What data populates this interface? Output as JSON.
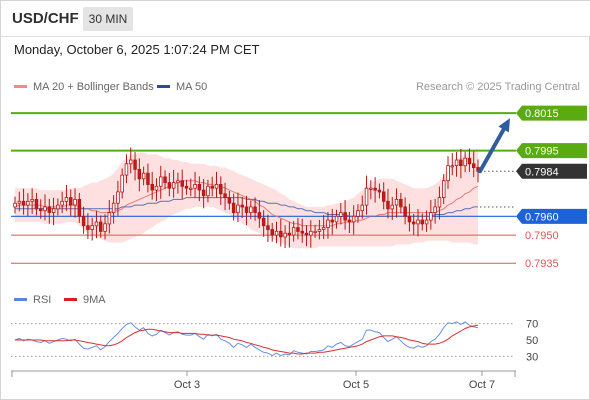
{
  "header": {
    "symbol": "USD/CHF",
    "timeframe": "30 MIN"
  },
  "timestamp": "Monday, October 6, 2025 1:07:24 PM CET",
  "legend": {
    "bb_label": "MA 20 + Bollinger Bands",
    "ma50_label": "MA 50",
    "credit": "Research © 2025 Trading Central"
  },
  "rsi_legend": {
    "rsi_label": "RSI",
    "ma_label": "9MA"
  },
  "colors": {
    "green_level": "#5aaa12",
    "current_price": "#333333",
    "support_blue": "#1e62d8",
    "red_level": "#e05555",
    "bollinger_fill": "#ffd5d5",
    "ma20": "#e87878",
    "ma50": "#5a6fb0",
    "bull_candle": "#ffffff",
    "bear_candle": "#c21b1b",
    "candle_outline": "#b01818",
    "arrow": "#2f5d9e",
    "rsi": "#6b8fe0",
    "rsi_ma": "#d83030"
  },
  "chart_data": [
    {
      "type": "candlestick",
      "title": "USD/CHF 30 MIN",
      "x_ticks": [
        "Oct 3",
        "Oct 5",
        "Oct 7"
      ],
      "ylim": [
        0.7925,
        0.8022
      ],
      "levels": [
        {
          "value": "0.8015",
          "style": "green-box"
        },
        {
          "value": "0.7995",
          "style": "green-box"
        },
        {
          "value": "0.7984",
          "style": "current-price"
        },
        {
          "value": "0.7960",
          "style": "blue-box"
        },
        {
          "value": "0.7950",
          "style": "red-text"
        },
        {
          "value": "0.7935",
          "style": "red-text"
        }
      ],
      "closes": [
        0.7967,
        0.7968,
        0.7966,
        0.7968,
        0.7969,
        0.7964,
        0.7963,
        0.7965,
        0.7962,
        0.7964,
        0.7966,
        0.7968,
        0.797,
        0.7966,
        0.7969,
        0.796,
        0.7955,
        0.7953,
        0.7955,
        0.7957,
        0.7952,
        0.7956,
        0.7962,
        0.7967,
        0.7973,
        0.7982,
        0.7988,
        0.799,
        0.7985,
        0.798,
        0.7983,
        0.7977,
        0.7974,
        0.7976,
        0.7981,
        0.7978,
        0.7975,
        0.7978,
        0.7979,
        0.7976,
        0.7975,
        0.7975,
        0.7977,
        0.7974,
        0.7971,
        0.7976,
        0.7975,
        0.7977,
        0.7972,
        0.797,
        0.7967,
        0.7962,
        0.7966,
        0.7965,
        0.7962,
        0.7965,
        0.7962,
        0.7959,
        0.7955,
        0.7953,
        0.795,
        0.7952,
        0.7949,
        0.7951,
        0.795,
        0.7954,
        0.7952,
        0.7951,
        0.795,
        0.7952,
        0.7952,
        0.7953,
        0.7954,
        0.7958,
        0.7957,
        0.796,
        0.7962,
        0.7958,
        0.7957,
        0.796,
        0.7963,
        0.7966,
        0.7975,
        0.7975,
        0.7974,
        0.7973,
        0.7968,
        0.7964,
        0.7966,
        0.7969,
        0.7965,
        0.796,
        0.7957,
        0.7956,
        0.7958,
        0.7956,
        0.7958,
        0.7962,
        0.7965,
        0.797,
        0.7979,
        0.7987,
        0.7987,
        0.799,
        0.7987,
        0.7991,
        0.7988,
        0.7986,
        0.7984
      ],
      "ma20": [
        0.7965,
        0.7966,
        0.7966,
        0.7966,
        0.7966,
        0.7966,
        0.7966,
        0.7965,
        0.7965,
        0.7965,
        0.7965,
        0.7965,
        0.7966,
        0.7966,
        0.7966,
        0.7965,
        0.7964,
        0.7964,
        0.7963,
        0.7963,
        0.7962,
        0.7962,
        0.7962,
        0.7963,
        0.7963,
        0.7964,
        0.7966,
        0.7967,
        0.7968,
        0.7969,
        0.797,
        0.7971,
        0.7972,
        0.7973,
        0.7974,
        0.7975,
        0.7976,
        0.7977,
        0.7978,
        0.7979,
        0.7979,
        0.7979,
        0.7979,
        0.7978,
        0.7978,
        0.7977,
        0.7977,
        0.7976,
        0.7976,
        0.7975,
        0.7974,
        0.7973,
        0.7972,
        0.7971,
        0.797,
        0.7969,
        0.7968,
        0.7966,
        0.7965,
        0.7963,
        0.7961,
        0.796,
        0.7959,
        0.7958,
        0.7957,
        0.7956,
        0.7956,
        0.7955,
        0.7955,
        0.7955,
        0.7955,
        0.7955,
        0.7955,
        0.7955,
        0.7955,
        0.7956,
        0.7956,
        0.7957,
        0.7957,
        0.7957,
        0.7958,
        0.7958,
        0.7959,
        0.796,
        0.796,
        0.7961,
        0.7961,
        0.7962,
        0.7962,
        0.7962,
        0.7962,
        0.7962,
        0.7962,
        0.7962,
        0.7962,
        0.7962,
        0.7962,
        0.7962,
        0.7962,
        0.7963,
        0.7964,
        0.7966,
        0.7967,
        0.7969,
        0.797,
        0.7972,
        0.7973,
        0.7975,
        0.7976
      ],
      "ma50": [
        0.7964,
        0.7964,
        0.7964,
        0.7964,
        0.7964,
        0.7964,
        0.7964,
        0.7964,
        0.7964,
        0.7964,
        0.7964,
        0.7964,
        0.7964,
        0.7964,
        0.7964,
        0.7964,
        0.7964,
        0.7964,
        0.7964,
        0.7964,
        0.7964,
        0.7964,
        0.7964,
        0.7964,
        0.7964,
        0.7965,
        0.7965,
        0.7965,
        0.7966,
        0.7966,
        0.7966,
        0.7967,
        0.7967,
        0.7967,
        0.7968,
        0.7968,
        0.7968,
        0.7969,
        0.7969,
        0.7969,
        0.797,
        0.797,
        0.797,
        0.797,
        0.797,
        0.797,
        0.797,
        0.797,
        0.797,
        0.797,
        0.797,
        0.797,
        0.797,
        0.797,
        0.7969,
        0.7969,
        0.7969,
        0.7968,
        0.7968,
        0.7967,
        0.7967,
        0.7967,
        0.7966,
        0.7966,
        0.7965,
        0.7965,
        0.7964,
        0.7964,
        0.7963,
        0.7963,
        0.7962,
        0.7962,
        0.7962,
        0.7961,
        0.7961,
        0.7961,
        0.7961,
        0.7961,
        0.796,
        0.796,
        0.796,
        0.796,
        0.796,
        0.796,
        0.796,
        0.796,
        0.796,
        0.796,
        0.796,
        0.796,
        0.796,
        0.796,
        0.796,
        0.796,
        0.796,
        0.796,
        0.796,
        0.796,
        0.7961,
        0.7961,
        0.7961,
        0.7962,
        0.7962,
        0.7963,
        0.7963,
        0.7964,
        0.7964,
        0.7965,
        0.7965
      ],
      "bb_upper": [
        0.7975,
        0.7975,
        0.7975,
        0.7975,
        0.7975,
        0.7975,
        0.7974,
        0.7974,
        0.7974,
        0.7974,
        0.7974,
        0.7974,
        0.7974,
        0.7975,
        0.7975,
        0.7975,
        0.7976,
        0.7977,
        0.7978,
        0.7978,
        0.7979,
        0.798,
        0.7981,
        0.7983,
        0.7986,
        0.7989,
        0.7991,
        0.7993,
        0.7993,
        0.7994,
        0.7994,
        0.7993,
        0.7993,
        0.7993,
        0.7992,
        0.7991,
        0.7991,
        0.799,
        0.799,
        0.7989,
        0.7989,
        0.7988,
        0.7988,
        0.7988,
        0.7988,
        0.7987,
        0.7987,
        0.7987,
        0.7986,
        0.7986,
        0.7985,
        0.7984,
        0.7983,
        0.7982,
        0.7981,
        0.798,
        0.7979,
        0.7978,
        0.7977,
        0.7976,
        0.7975,
        0.7974,
        0.7972,
        0.7971,
        0.7969,
        0.7968,
        0.7967,
        0.7966,
        0.7965,
        0.7965,
        0.7965,
        0.7965,
        0.7965,
        0.7966,
        0.7966,
        0.7967,
        0.7967,
        0.7968,
        0.7969,
        0.797,
        0.7972,
        0.7974,
        0.7976,
        0.7978,
        0.7979,
        0.798,
        0.798,
        0.798,
        0.798,
        0.7979,
        0.7978,
        0.7977,
        0.7976,
        0.7975,
        0.7975,
        0.7975,
        0.7975,
        0.7976,
        0.7977,
        0.7979,
        0.7982,
        0.7985,
        0.7988,
        0.799,
        0.7992,
        0.7993,
        0.7994,
        0.7995,
        0.7996
      ],
      "bb_lower": [
        0.7957,
        0.7957,
        0.7957,
        0.7957,
        0.7957,
        0.7957,
        0.7957,
        0.7956,
        0.7956,
        0.7956,
        0.7956,
        0.7956,
        0.7957,
        0.7957,
        0.7957,
        0.7955,
        0.7953,
        0.7951,
        0.795,
        0.7949,
        0.7948,
        0.7947,
        0.7946,
        0.7946,
        0.7946,
        0.7946,
        0.7947,
        0.7948,
        0.7949,
        0.795,
        0.7951,
        0.7953,
        0.7954,
        0.7956,
        0.7957,
        0.7958,
        0.796,
        0.7961,
        0.7962,
        0.7963,
        0.7964,
        0.7964,
        0.7965,
        0.7965,
        0.7965,
        0.7965,
        0.7965,
        0.7964,
        0.7963,
        0.7962,
        0.7961,
        0.7959,
        0.7958,
        0.7956,
        0.7955,
        0.7953,
        0.7952,
        0.7951,
        0.795,
        0.7949,
        0.7948,
        0.7947,
        0.7946,
        0.7945,
        0.7944,
        0.7943,
        0.7943,
        0.7943,
        0.7943,
        0.7943,
        0.7943,
        0.7944,
        0.7944,
        0.7944,
        0.7944,
        0.7944,
        0.7944,
        0.7944,
        0.7944,
        0.7944,
        0.7944,
        0.7944,
        0.7944,
        0.7944,
        0.7944,
        0.7944,
        0.7944,
        0.7944,
        0.7944,
        0.7945,
        0.7945,
        0.7945,
        0.7945,
        0.7946,
        0.7946,
        0.7946,
        0.7947,
        0.7947,
        0.7947,
        0.7947,
        0.7947,
        0.7947,
        0.7946,
        0.7946,
        0.7946,
        0.7946,
        0.7946,
        0.7945,
        0.7945
      ],
      "projection": {
        "from_value": 0.7984,
        "to_value": 0.8015
      }
    },
    {
      "type": "line",
      "title": "RSI",
      "ylim": [
        22,
        78
      ],
      "y_ticks": [
        "70",
        "50",
        "30"
      ],
      "series": [
        {
          "name": "RSI",
          "values": [
            50,
            52,
            49,
            51,
            50,
            48,
            47,
            49,
            46,
            48,
            50,
            52,
            51,
            49,
            51,
            45,
            40,
            39,
            41,
            43,
            38,
            42,
            48,
            53,
            58,
            64,
            69,
            71,
            66,
            62,
            65,
            58,
            55,
            57,
            62,
            59,
            56,
            59,
            60,
            57,
            56,
            56,
            58,
            54,
            51,
            57,
            55,
            57,
            51,
            49,
            46,
            41,
            46,
            44,
            41,
            45,
            41,
            38,
            35,
            34,
            31,
            34,
            31,
            33,
            32,
            37,
            35,
            34,
            33,
            36,
            36,
            37,
            38,
            43,
            41,
            45,
            47,
            43,
            42,
            45,
            48,
            51,
            62,
            62,
            60,
            59,
            53,
            48,
            51,
            54,
            49,
            44,
            41,
            40,
            43,
            41,
            43,
            48,
            51,
            57,
            65,
            71,
            70,
            72,
            69,
            72,
            68,
            66,
            65
          ]
        },
        {
          "name": "9MA",
          "values": [
            50,
            50,
            50,
            50,
            50,
            50,
            50,
            49,
            49,
            49,
            49,
            49,
            49,
            50,
            50,
            49,
            48,
            47,
            46,
            45,
            44,
            43,
            43,
            44,
            46,
            49,
            53,
            56,
            59,
            61,
            62,
            63,
            63,
            62,
            61,
            60,
            59,
            59,
            59,
            58,
            58,
            58,
            58,
            57,
            57,
            56,
            56,
            56,
            55,
            54,
            53,
            51,
            50,
            49,
            47,
            46,
            44,
            43,
            41,
            40,
            38,
            37,
            36,
            35,
            34,
            34,
            33,
            33,
            34,
            34,
            34,
            35,
            35,
            36,
            37,
            38,
            39,
            40,
            41,
            42,
            43,
            45,
            48,
            50,
            52,
            54,
            55,
            55,
            55,
            54,
            53,
            52,
            50,
            49,
            48,
            46,
            45,
            45,
            45,
            46,
            48,
            51,
            55,
            58,
            61,
            64,
            66,
            67,
            68
          ]
        }
      ]
    }
  ]
}
